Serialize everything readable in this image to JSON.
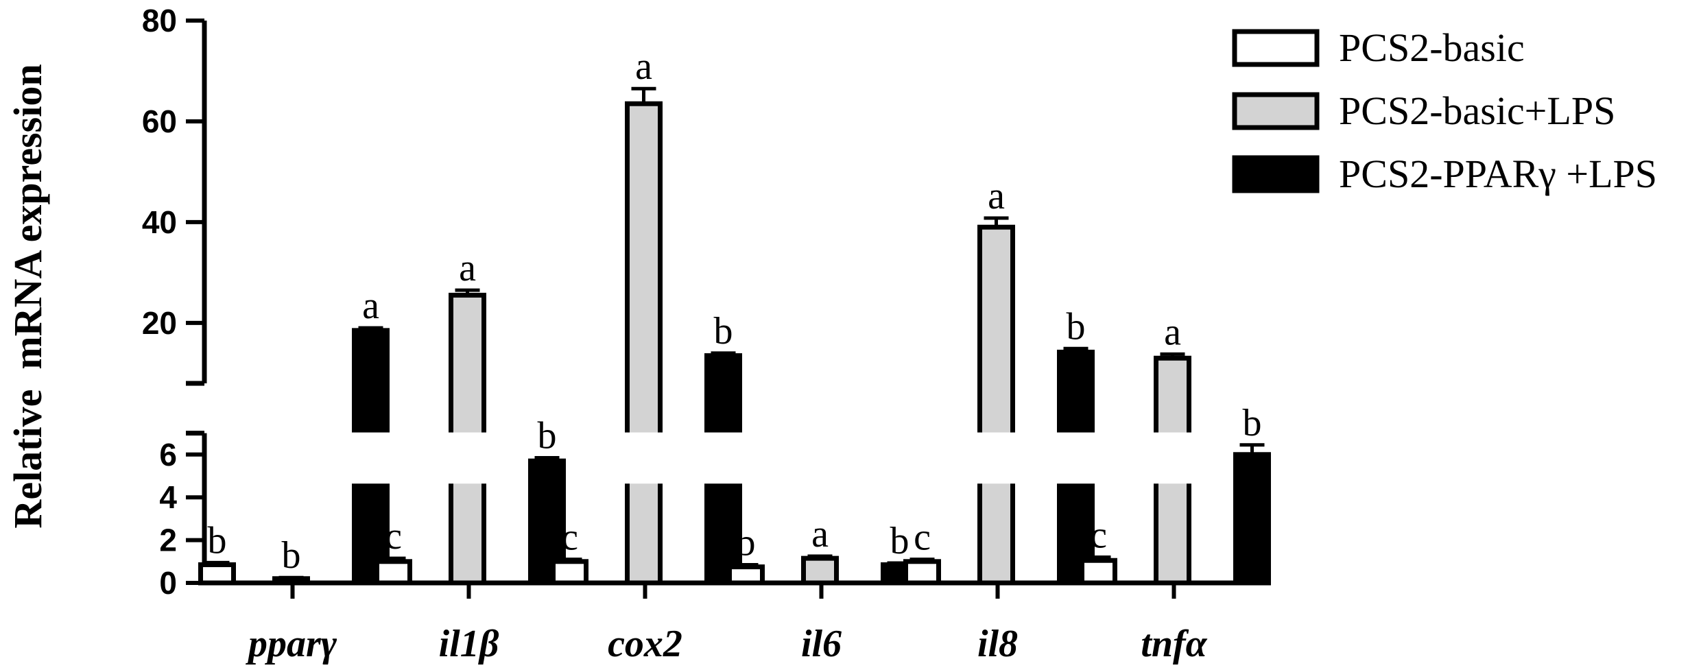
{
  "chart_data": {
    "type": "bar",
    "ylabel": "Relative  mRNA expression",
    "categories": [
      "pparγ",
      "il1β",
      "cox2",
      "il6",
      "il8",
      "tnfα"
    ],
    "series": [
      {
        "name": "PCS2-basic",
        "color": "#ffffff",
        "values": [
          0.85,
          1.0,
          1.0,
          0.75,
          1.0,
          1.05
        ],
        "errors": [
          0.1,
          0.15,
          0.1,
          0.1,
          0.1,
          0.15
        ],
        "significance": [
          "b",
          "c",
          "c",
          "b",
          "c",
          "c"
        ]
      },
      {
        "name": "PCS2-basic+LPS",
        "color": "#d3d3d3",
        "values": [
          0.2,
          25.5,
          63.5,
          1.15,
          39.0,
          13.0
        ],
        "errors": [
          0.05,
          1.0,
          3.0,
          0.1,
          1.8,
          0.8
        ],
        "significance": [
          "b",
          "a",
          "a",
          "a",
          "a",
          "a"
        ]
      },
      {
        "name": "PCS2-PPARγ +LPS",
        "color": "#000000",
        "values": [
          18.5,
          5.7,
          13.5,
          0.85,
          14.2,
          6.0
        ],
        "errors": [
          0.5,
          0.15,
          0.5,
          0.08,
          0.7,
          0.45
        ],
        "significance": [
          "a",
          "b",
          "b",
          "b",
          "b",
          "b"
        ]
      }
    ],
    "y_axis_segments": [
      {
        "range": [
          0,
          7
        ],
        "ticks": [
          "0",
          "2",
          "4",
          "6"
        ]
      },
      {
        "range": [
          8,
          80
        ],
        "ticks": [
          "20",
          "40",
          "60",
          "80"
        ]
      }
    ],
    "axis_break": true,
    "legend_position": "top-right"
  }
}
